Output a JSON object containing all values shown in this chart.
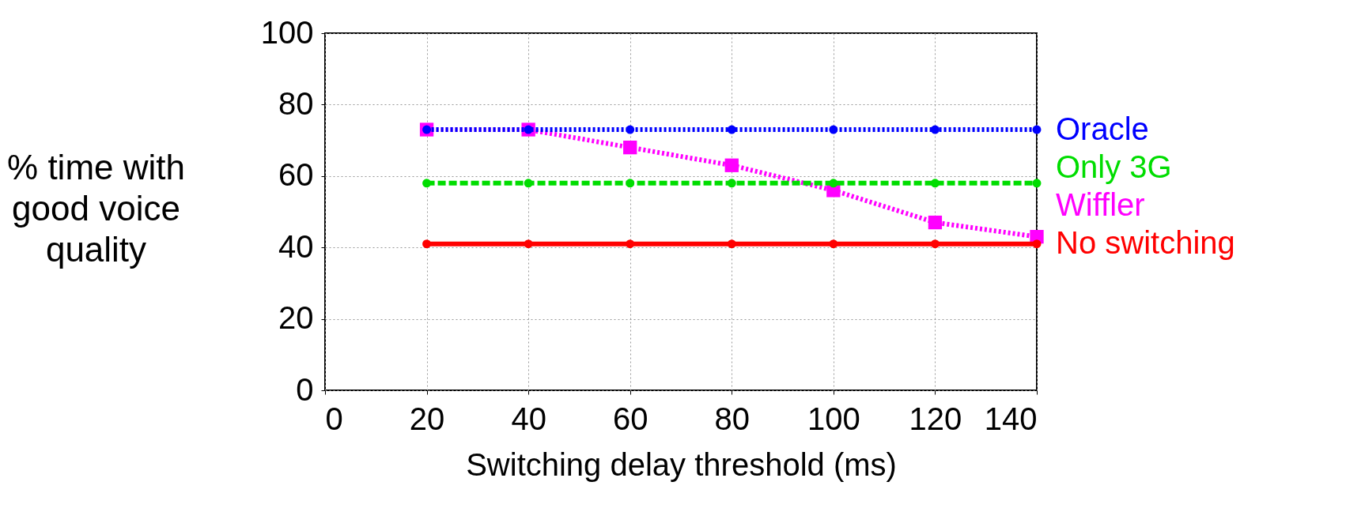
{
  "chart_data": {
    "type": "line",
    "xlabel": "Switching delay threshold (ms)",
    "ylabel": "% time with good voice quality",
    "x": [
      20,
      40,
      60,
      80,
      100,
      120,
      140
    ],
    "series": [
      {
        "name": "Oracle",
        "color": "#0000ff",
        "values": [
          73,
          73,
          73,
          73,
          73,
          73,
          73
        ],
        "marker": "circle",
        "line_style": "dotted"
      },
      {
        "name": "Only 3G",
        "color": "#00dd00",
        "values": [
          58,
          58,
          58,
          58,
          58,
          58,
          58
        ],
        "marker": "circle",
        "line_style": "dashed"
      },
      {
        "name": "Wiffler",
        "color": "#ff00ff",
        "values": [
          73,
          73,
          68,
          63,
          56,
          47,
          43
        ],
        "marker": "square",
        "line_style": "dotted"
      },
      {
        "name": "No switching",
        "color": "#ff0000",
        "values": [
          41,
          41,
          41,
          41,
          41,
          41,
          41
        ],
        "marker": "circle",
        "line_style": "solid"
      }
    ],
    "xlim": [
      0,
      140
    ],
    "xticks": [
      0,
      20,
      40,
      60,
      80,
      100,
      120,
      140
    ],
    "ylim": [
      0,
      100
    ],
    "yticks": [
      0,
      20,
      40,
      60,
      80,
      100
    ],
    "grid": true,
    "legend": "right"
  }
}
